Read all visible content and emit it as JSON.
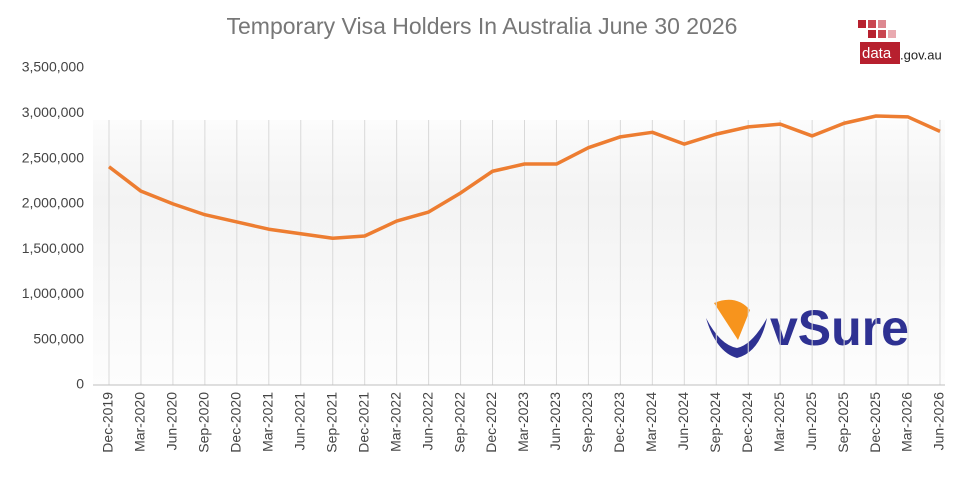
{
  "chart_data": {
    "type": "line",
    "title": "Temporary Visa Holders In Australia  June 30 2026",
    "annotations": [
      "data",
      ".gov.au",
      "vSure"
    ],
    "categories": [
      "Dec-2019",
      "Mar-2020",
      "Jun-2020",
      "Sep-2020",
      "Dec-2020",
      "Mar-2021",
      "Jun-2021",
      "Sep-2021",
      "Dec-2021",
      "Mar-2022",
      "Jun-2022",
      "Sep-2022",
      "Dec-2022",
      "Mar-2023",
      "Jun-2023",
      "Sep-2023",
      "Dec-2023",
      "Mar-2024",
      "Jun-2024",
      "Sep-2024",
      "Dec-2024",
      "Mar-2025",
      "Jun-2025",
      "Sep-2025",
      "Dec-2025",
      "Mar-2026",
      "Jun-2026"
    ],
    "series": [
      {
        "color": "#ed7d31",
        "values": [
          2410000,
          2140000,
          2000000,
          1880000,
          1800000,
          1720000,
          1670000,
          1620000,
          1645000,
          1810000,
          1910000,
          2120000,
          2360000,
          2440000,
          2440000,
          2620000,
          2740000,
          2790000,
          2660000,
          2770000,
          2850000,
          2880000,
          2750000,
          2890000,
          2970000,
          2960000,
          2800000
        ]
      }
    ],
    "ylim": [
      0,
      3500000
    ],
    "yticks": [
      0,
      {
        "value": 500000,
        "label": "500,000"
      },
      {
        "value": 1000000,
        "label": "1,000,000"
      },
      {
        "value": 1500000,
        "label": "1,500,000"
      },
      {
        "value": 2000000,
        "label": "2,000,000"
      },
      {
        "value": 2500000,
        "label": "2,500,000"
      },
      {
        "value": 3000000,
        "label": "3,000,000"
      },
      {
        "value": 3500000,
        "label": "3,500,000"
      }
    ],
    "grid": "vertical"
  }
}
